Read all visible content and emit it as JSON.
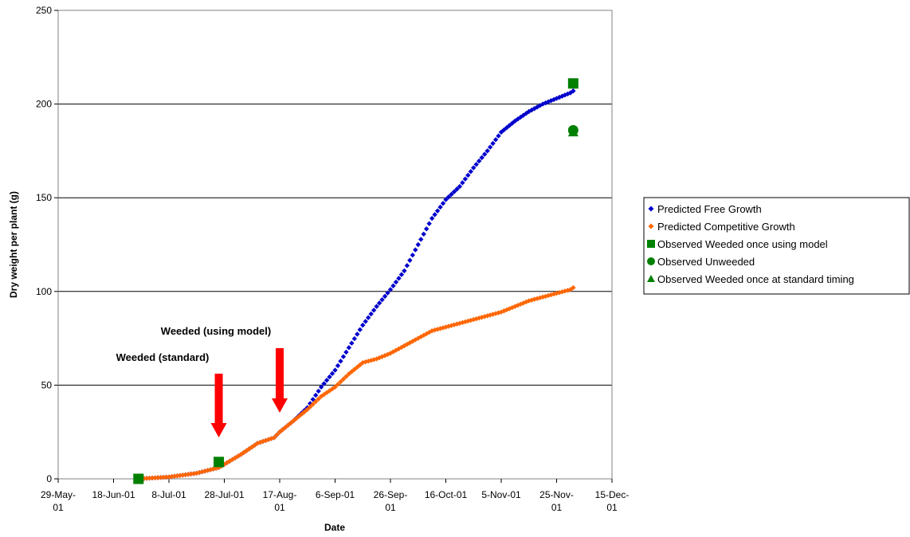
{
  "chart_data": {
    "type": "scatter",
    "xlabel": "Date",
    "ylabel": "Dry weight per plant (g)",
    "ylim": [
      0,
      250
    ],
    "yticks": [
      0,
      50,
      100,
      150,
      200,
      250
    ],
    "xlim": [
      "2001-05-29",
      "2001-12-15"
    ],
    "xticks": [
      {
        "date": "2001-05-29",
        "line1": "29-May-",
        "line2": "01"
      },
      {
        "date": "2001-06-18",
        "line1": "18-Jun-01",
        "line2": ""
      },
      {
        "date": "2001-07-08",
        "line1": "8-Jul-01",
        "line2": ""
      },
      {
        "date": "2001-07-28",
        "line1": "28-Jul-01",
        "line2": ""
      },
      {
        "date": "2001-08-17",
        "line1": "17-Aug-",
        "line2": "01"
      },
      {
        "date": "2001-09-06",
        "line1": "6-Sep-01",
        "line2": ""
      },
      {
        "date": "2001-09-26",
        "line1": "26-Sep-",
        "line2": "01"
      },
      {
        "date": "2001-10-16",
        "line1": "16-Oct-01",
        "line2": ""
      },
      {
        "date": "2001-11-05",
        "line1": "5-Nov-01",
        "line2": ""
      },
      {
        "date": "2001-11-25",
        "line1": "25-Nov-",
        "line2": "01"
      },
      {
        "date": "2001-12-15",
        "line1": "15-Dec-",
        "line2": "01"
      }
    ],
    "grid": "horizontal",
    "legend_position": "right",
    "series": [
      {
        "name": "Predicted  Free Growth",
        "color": "#0000CC",
        "marker": "diamond",
        "points": [
          [
            "2001-06-27",
            0
          ],
          [
            "2001-07-08",
            1
          ],
          [
            "2001-07-18",
            3
          ],
          [
            "2001-07-26",
            6
          ],
          [
            "2001-08-03",
            13
          ],
          [
            "2001-08-09",
            19
          ],
          [
            "2001-08-15",
            22
          ],
          [
            "2001-08-17",
            25
          ],
          [
            "2001-08-22",
            31
          ],
          [
            "2001-08-27",
            38
          ],
          [
            "2001-09-01",
            49
          ],
          [
            "2001-09-06",
            58
          ],
          [
            "2001-09-11",
            70
          ],
          [
            "2001-09-16",
            82
          ],
          [
            "2001-09-21",
            92
          ],
          [
            "2001-09-26",
            101
          ],
          [
            "2001-10-01",
            111
          ],
          [
            "2001-10-06",
            125
          ],
          [
            "2001-10-11",
            139
          ],
          [
            "2001-10-16",
            149
          ],
          [
            "2001-10-21",
            156
          ],
          [
            "2001-10-26",
            166
          ],
          [
            "2001-10-31",
            175
          ],
          [
            "2001-11-05",
            185
          ],
          [
            "2001-11-10",
            191
          ],
          [
            "2001-11-15",
            196
          ],
          [
            "2001-11-20",
            200
          ],
          [
            "2001-11-25",
            203
          ],
          [
            "2001-11-30",
            206
          ],
          [
            "2001-12-01",
            207
          ]
        ]
      },
      {
        "name": "Predicted  Competitive Growth",
        "color": "#FF6600",
        "marker": "diamond",
        "points": [
          [
            "2001-06-27",
            0
          ],
          [
            "2001-07-08",
            1
          ],
          [
            "2001-07-18",
            3
          ],
          [
            "2001-07-26",
            6
          ],
          [
            "2001-08-03",
            13
          ],
          [
            "2001-08-09",
            19
          ],
          [
            "2001-08-15",
            22
          ],
          [
            "2001-08-17",
            25
          ],
          [
            "2001-08-22",
            31
          ],
          [
            "2001-08-27",
            37
          ],
          [
            "2001-09-01",
            44
          ],
          [
            "2001-09-06",
            49
          ],
          [
            "2001-09-11",
            56
          ],
          [
            "2001-09-16",
            62
          ],
          [
            "2001-09-21",
            64
          ],
          [
            "2001-09-26",
            67
          ],
          [
            "2001-10-01",
            71
          ],
          [
            "2001-10-06",
            75
          ],
          [
            "2001-10-11",
            79
          ],
          [
            "2001-10-16",
            81
          ],
          [
            "2001-10-21",
            83
          ],
          [
            "2001-10-26",
            85
          ],
          [
            "2001-10-31",
            87
          ],
          [
            "2001-11-05",
            89
          ],
          [
            "2001-11-10",
            92
          ],
          [
            "2001-11-15",
            95
          ],
          [
            "2001-11-20",
            97
          ],
          [
            "2001-11-25",
            99
          ],
          [
            "2001-11-30",
            101
          ],
          [
            "2001-12-01",
            102
          ]
        ]
      },
      {
        "name": "Observed Weeded once using model",
        "color": "#008000",
        "marker": "square",
        "points": [
          [
            "2001-06-27",
            0
          ],
          [
            "2001-07-26",
            9
          ],
          [
            "2001-12-01",
            211
          ]
        ]
      },
      {
        "name": "Observed  Unweeded",
        "color": "#008000",
        "marker": "circle",
        "points": [
          [
            "2001-12-01",
            186
          ]
        ]
      },
      {
        "name": "Observed Weeded once at standard timing",
        "color": "#008000",
        "marker": "triangle",
        "points": [
          [
            "2001-12-01",
            185
          ]
        ]
      }
    ],
    "annotations": [
      {
        "text": "Weeded (using model)",
        "arrow_date": "2001-08-17",
        "arrow_color": "#FF0000"
      },
      {
        "text": "Weeded (standard)",
        "arrow_date": "2001-07-26",
        "arrow_color": "#FF0000"
      }
    ]
  }
}
